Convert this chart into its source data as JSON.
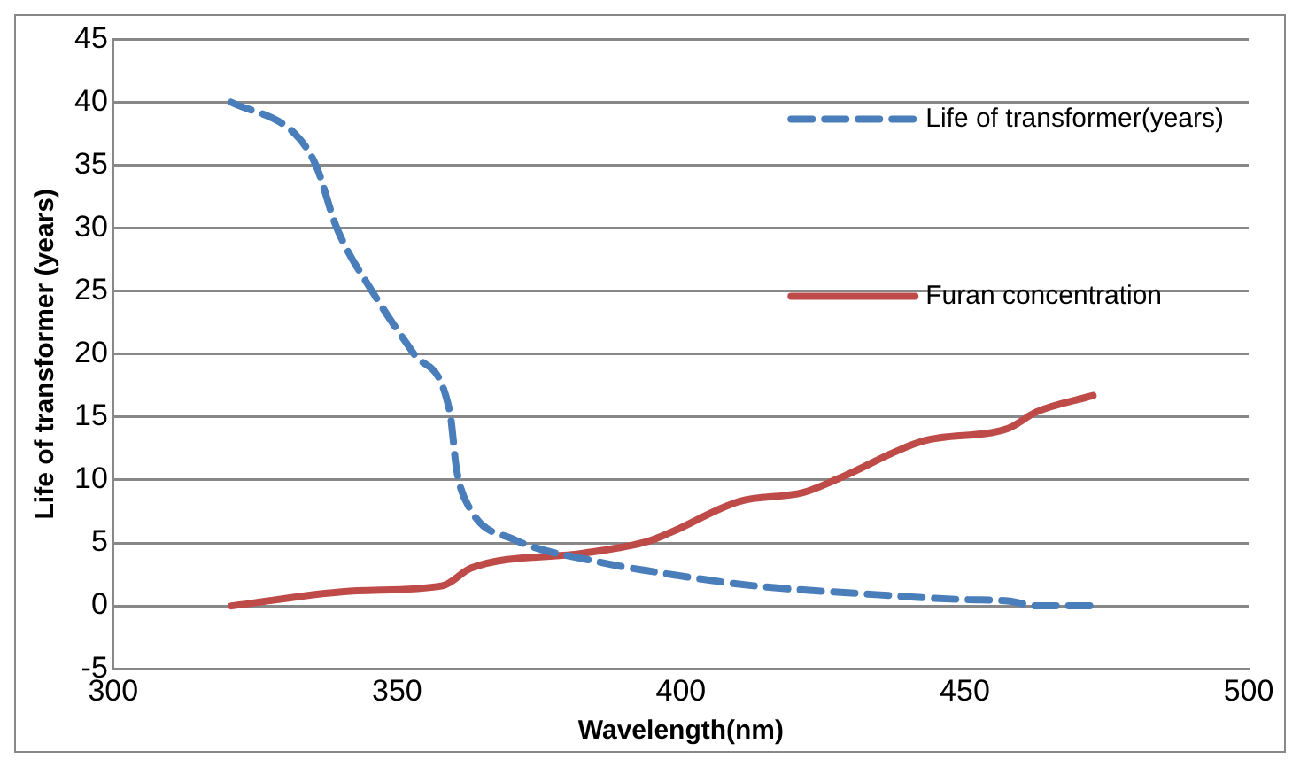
{
  "chart_data": {
    "type": "line",
    "xlabel": "Wavelength(nm)",
    "ylabel": "Life of transformer (years)",
    "xlim": [
      300,
      500
    ],
    "xticks": [
      300,
      350,
      400,
      450,
      500
    ],
    "ylim": [
      -5,
      45
    ],
    "yticks": [
      -5,
      0,
      5,
      10,
      15,
      20,
      25,
      30,
      35,
      40,
      45
    ],
    "grid": "y",
    "legend": "top right",
    "marker": "none",
    "series": [
      {
        "name": "Life of transformer(years)",
        "color": "#4a7ebb",
        "line_style": "dashed",
        "x": [
          320.8,
          332,
          335.7,
          339.4,
          345.6,
          353,
          359.3,
          360.5,
          363,
          370.5,
          385.4,
          394,
          412.8,
          431,
          450,
          457.6,
          462.6,
          472.6
        ],
        "values": [
          40,
          37.5,
          35,
          30,
          25,
          20,
          15.4,
          10.8,
          7.6,
          5.3,
          3.5,
          2.8,
          1.6,
          1,
          0.5,
          0.4,
          0,
          0
        ]
      },
      {
        "name": "Furan concentration",
        "color": "#be4b48",
        "line_style": "solid",
        "x": [
          320.8,
          343,
          358,
          363,
          383,
          394,
          398,
          410.3,
          421.5,
          427.7,
          442.7,
          457.6,
          462.6,
          472.6
        ],
        "values": [
          0,
          1.2,
          1.6,
          3,
          4.2,
          5.1,
          5.8,
          8.3,
          9,
          10.1,
          13.1,
          14.1,
          15.4,
          16.7
        ]
      }
    ]
  }
}
